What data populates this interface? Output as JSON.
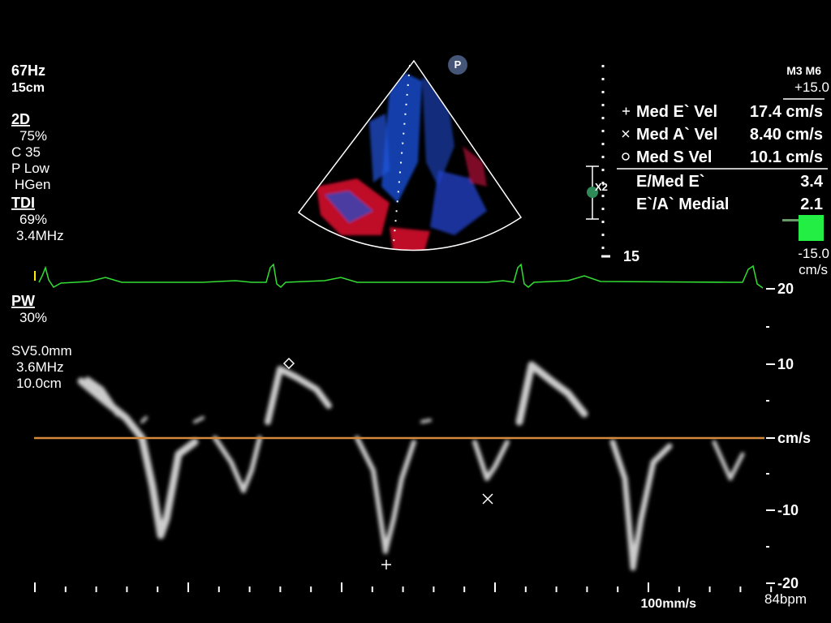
{
  "header": {
    "frame_rate": "67Hz",
    "depth": "15cm"
  },
  "modes": {
    "mode_2d": {
      "label": "2D",
      "gain": "75%",
      "lines": [
        "C 35",
        "P Low",
        "HGen"
      ]
    },
    "tdi": {
      "label": "TDI",
      "gain": "69%",
      "freq": "3.4MHz"
    },
    "pw": {
      "label": "PW",
      "gain": "30%",
      "lines": [
        "SV5.0mm",
        "3.6MHz",
        "10.0cm"
      ]
    }
  },
  "probe_badge": "P",
  "color_scale": {
    "name": "M3 M6",
    "max": "+15.0",
    "min": "-15.0",
    "unit": "cm/s"
  },
  "depth_scale": {
    "zoom": "X2",
    "max_depth": "15"
  },
  "measurements": [
    {
      "label": "Med E` Vel",
      "value": "17.4 cm/s"
    },
    {
      "label": "Med A` Vel",
      "value": "8.40 cm/s"
    },
    {
      "label": "Med S Vel",
      "value": "10.1 cm/s"
    }
  ],
  "ratios": [
    {
      "label": "E/Med E`",
      "value": "3.4"
    },
    {
      "label": "E`/A` Medial",
      "value": "2.1"
    }
  ],
  "doppler_scale": [
    "20",
    "10",
    "cm/s",
    "-10",
    "-20"
  ],
  "sweep_speed": "100mm/s",
  "heart_rate": "84bpm"
}
